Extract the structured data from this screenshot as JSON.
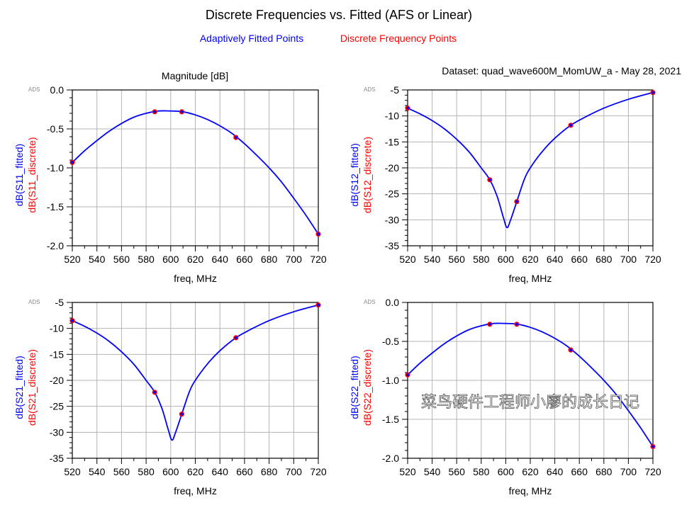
{
  "title": "Discrete Frequencies vs. Fitted (AFS or Linear)",
  "legend": [
    {
      "label": "Adaptively Fitted Points",
      "color": "#0000ff"
    },
    {
      "label": "Discrete Frequency Points",
      "color": "#ff0000"
    }
  ],
  "subtitle_left": "Magnitude [dB]",
  "subtitle_right": "Dataset: quad_wave600M_MomUW_a - May 28, 2021",
  "ads_mark": "ADS",
  "watermark": "菜鸟硬件工程师小廖的成长日记",
  "chart_data": [
    {
      "type": "line",
      "name": "S11",
      "xlabel": "freq, MHz",
      "ylabel_fitted": "dB(S11_fitted)",
      "ylabel_discrete": "dB(S11_discrete)",
      "xlim": [
        520,
        720
      ],
      "ylim": [
        -2.0,
        0.0
      ],
      "xticks": [
        520,
        540,
        560,
        580,
        600,
        620,
        640,
        660,
        680,
        700,
        720
      ],
      "yticks": [
        0.0,
        -0.5,
        -1.0,
        -1.5,
        -2.0
      ],
      "ytick_labels": [
        "0.0",
        "-0.5",
        "-1.0",
        "-1.5",
        "-2.0"
      ],
      "grid": true,
      "fitted": {
        "x": [
          520,
          530,
          540,
          550,
          560,
          570,
          580,
          590,
          600,
          610,
          620,
          630,
          640,
          650,
          660,
          670,
          680,
          690,
          700,
          710,
          720
        ],
        "y": [
          -0.93,
          -0.78,
          -0.65,
          -0.53,
          -0.43,
          -0.35,
          -0.3,
          -0.27,
          -0.27,
          -0.28,
          -0.32,
          -0.38,
          -0.46,
          -0.56,
          -0.69,
          -0.84,
          -1.0,
          -1.18,
          -1.39,
          -1.61,
          -1.85
        ]
      },
      "discrete": {
        "x": [
          520,
          587,
          609,
          653,
          720
        ],
        "y": [
          -0.93,
          -0.28,
          -0.28,
          -0.61,
          -1.85
        ]
      }
    },
    {
      "type": "line",
      "name": "S12",
      "xlabel": "freq, MHz",
      "ylabel_fitted": "dB(S12_fitted)",
      "ylabel_discrete": "dB(S12_discrete)",
      "xlim": [
        520,
        720
      ],
      "ylim": [
        -35,
        -5
      ],
      "xticks": [
        520,
        540,
        560,
        580,
        600,
        620,
        640,
        660,
        680,
        700,
        720
      ],
      "yticks": [
        -5,
        -10,
        -15,
        -20,
        -25,
        -30,
        -35
      ],
      "ytick_labels": [
        "-5",
        "-10",
        "-15",
        "-20",
        "-25",
        "-30",
        "-35"
      ],
      "grid": true,
      "fitted": {
        "x": [
          520,
          530,
          540,
          550,
          560,
          570,
          580,
          587,
          593,
          598,
          601,
          604,
          609,
          615,
          620,
          630,
          640,
          653,
          665,
          680,
          700,
          720
        ],
        "y": [
          -8.5,
          -9.6,
          -10.9,
          -12.5,
          -14.5,
          -16.9,
          -20.0,
          -22.3,
          -25.5,
          -29.5,
          -31.5,
          -30.0,
          -26.5,
          -22.3,
          -20.0,
          -16.8,
          -14.3,
          -11.8,
          -10.2,
          -8.5,
          -6.8,
          -5.5
        ]
      },
      "discrete": {
        "x": [
          520,
          587,
          609,
          653,
          720
        ],
        "y": [
          -8.5,
          -22.3,
          -26.5,
          -11.8,
          -5.5
        ]
      }
    },
    {
      "type": "line",
      "name": "S21",
      "xlabel": "freq, MHz",
      "ylabel_fitted": "dB(S21_fitted)",
      "ylabel_discrete": "dB(S21_discrete)",
      "xlim": [
        520,
        720
      ],
      "ylim": [
        -35,
        -5
      ],
      "xticks": [
        520,
        540,
        560,
        580,
        600,
        620,
        640,
        660,
        680,
        700,
        720
      ],
      "yticks": [
        -5,
        -10,
        -15,
        -20,
        -25,
        -30,
        -35
      ],
      "ytick_labels": [
        "-5",
        "-10",
        "-15",
        "-20",
        "-25",
        "-30",
        "-35"
      ],
      "grid": true,
      "fitted": {
        "x": [
          520,
          530,
          540,
          550,
          560,
          570,
          580,
          587,
          593,
          598,
          601,
          604,
          609,
          615,
          620,
          630,
          640,
          653,
          665,
          680,
          700,
          720
        ],
        "y": [
          -8.5,
          -9.6,
          -10.9,
          -12.5,
          -14.5,
          -16.9,
          -20.0,
          -22.3,
          -25.5,
          -29.5,
          -31.5,
          -30.0,
          -26.5,
          -22.3,
          -20.0,
          -16.8,
          -14.3,
          -11.8,
          -10.2,
          -8.5,
          -6.8,
          -5.5
        ]
      },
      "discrete": {
        "x": [
          520,
          587,
          609,
          653,
          720
        ],
        "y": [
          -8.5,
          -22.3,
          -26.5,
          -11.8,
          -5.5
        ]
      }
    },
    {
      "type": "line",
      "name": "S22",
      "xlabel": "freq, MHz",
      "ylabel_fitted": "dB(S22_fitted)",
      "ylabel_discrete": "dB(S22_discrete)",
      "xlim": [
        520,
        720
      ],
      "ylim": [
        -2.0,
        0.0
      ],
      "xticks": [
        520,
        540,
        560,
        580,
        600,
        620,
        640,
        660,
        680,
        700,
        720
      ],
      "yticks": [
        0.0,
        -0.5,
        -1.0,
        -1.5,
        -2.0
      ],
      "ytick_labels": [
        "0.0",
        "-0.5",
        "-1.0",
        "-1.5",
        "-2.0"
      ],
      "grid": true,
      "fitted": {
        "x": [
          520,
          530,
          540,
          550,
          560,
          570,
          580,
          590,
          600,
          610,
          620,
          630,
          640,
          650,
          660,
          670,
          680,
          690,
          700,
          710,
          720
        ],
        "y": [
          -0.93,
          -0.78,
          -0.65,
          -0.53,
          -0.43,
          -0.35,
          -0.3,
          -0.27,
          -0.27,
          -0.28,
          -0.32,
          -0.38,
          -0.46,
          -0.56,
          -0.69,
          -0.84,
          -1.0,
          -1.18,
          -1.39,
          -1.61,
          -1.85
        ]
      },
      "discrete": {
        "x": [
          520,
          587,
          609,
          653,
          720
        ],
        "y": [
          -0.93,
          -0.28,
          -0.28,
          -0.61,
          -1.85
        ]
      }
    }
  ]
}
